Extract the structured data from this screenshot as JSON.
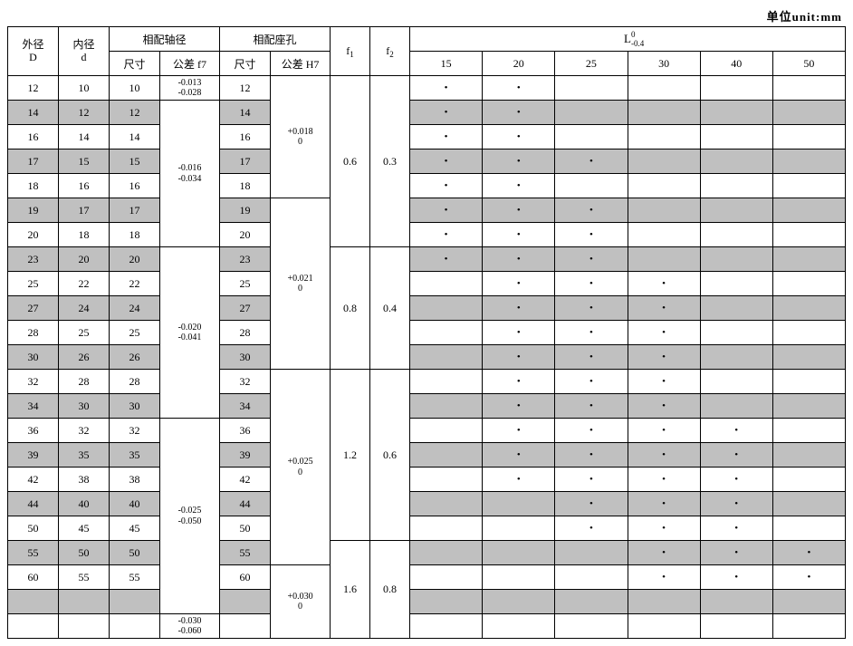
{
  "unit_label": "单位unit:mm",
  "headers": {
    "outer_diameter": "外径",
    "outer_diameter_sym": "D",
    "inner_diameter": "内径",
    "inner_diameter_sym": "d",
    "shaft_fit": "相配轴径",
    "bore_fit": "相配座孔",
    "size": "尺寸",
    "tol_f7": "公差 f7",
    "tol_H7": "公差 H7",
    "f1": "f",
    "f1_sub": "1",
    "f2": "f",
    "f2_sub": "2",
    "L_main": "L",
    "L_top": "0",
    "L_bot": "-0.4",
    "L_cols": [
      "15",
      "20",
      "25",
      "30",
      "40",
      "50"
    ]
  },
  "colors": {
    "gray": "#c0c0c0",
    "white": "#ffffff",
    "border": "#000000"
  },
  "tolerances_f7": [
    {
      "lines": [
        "-0.013",
        "-0.028"
      ],
      "span": 1
    },
    {
      "lines": [
        "-0.016",
        "-0.034"
      ],
      "span": 6
    },
    {
      "lines": [
        "-0.020",
        "-0.041"
      ],
      "span": 7
    },
    {
      "lines": [
        "-0.025",
        "-0.050"
      ],
      "span": 8
    },
    {
      "lines": [
        "-0.030",
        "-0.060"
      ],
      "span": 1
    }
  ],
  "tolerances_H7": [
    {
      "lines": [
        "+0.018",
        "0"
      ],
      "span": 5
    },
    {
      "lines": [
        "+0.021",
        "0"
      ],
      "span": 7
    },
    {
      "lines": [
        "+0.025",
        "0"
      ],
      "span": 8
    },
    {
      "lines": [
        "+0.030",
        "0"
      ],
      "span": 3
    }
  ],
  "f1_groups": [
    {
      "val": "0.6",
      "span": 7
    },
    {
      "val": "0.8",
      "span": 5
    },
    {
      "val": "1.2",
      "span": 7
    },
    {
      "val": "1.6",
      "span": 4
    }
  ],
  "f2_groups": [
    {
      "val": "0.3",
      "span": 7
    },
    {
      "val": "0.4",
      "span": 5
    },
    {
      "val": "0.6",
      "span": 7
    },
    {
      "val": "0.8",
      "span": 4
    }
  ],
  "rows": [
    {
      "D": "12",
      "d": "10",
      "shaft": "10",
      "bore": "12",
      "gray": false,
      "L": [
        1,
        1,
        0,
        0,
        0,
        0
      ]
    },
    {
      "D": "14",
      "d": "12",
      "shaft": "12",
      "bore": "14",
      "gray": true,
      "L": [
        1,
        1,
        0,
        0,
        0,
        0
      ]
    },
    {
      "D": "16",
      "d": "14",
      "shaft": "14",
      "bore": "16",
      "gray": false,
      "L": [
        1,
        1,
        0,
        0,
        0,
        0
      ]
    },
    {
      "D": "17",
      "d": "15",
      "shaft": "15",
      "bore": "17",
      "gray": true,
      "L": [
        1,
        1,
        1,
        0,
        0,
        0
      ]
    },
    {
      "D": "18",
      "d": "16",
      "shaft": "16",
      "bore": "18",
      "gray": false,
      "L": [
        1,
        1,
        0,
        0,
        0,
        0
      ]
    },
    {
      "D": "19",
      "d": "17",
      "shaft": "17",
      "bore": "19",
      "gray": true,
      "L": [
        1,
        1,
        1,
        0,
        0,
        0
      ]
    },
    {
      "D": "20",
      "d": "18",
      "shaft": "18",
      "bore": "20",
      "gray": false,
      "L": [
        1,
        1,
        1,
        0,
        0,
        0
      ]
    },
    {
      "D": "23",
      "d": "20",
      "shaft": "20",
      "bore": "23",
      "gray": true,
      "L": [
        1,
        1,
        1,
        0,
        0,
        0
      ]
    },
    {
      "D": "25",
      "d": "22",
      "shaft": "22",
      "bore": "25",
      "gray": false,
      "L": [
        0,
        1,
        1,
        1,
        0,
        0
      ]
    },
    {
      "D": "27",
      "d": "24",
      "shaft": "24",
      "bore": "27",
      "gray": true,
      "L": [
        0,
        1,
        1,
        1,
        0,
        0
      ]
    },
    {
      "D": "28",
      "d": "25",
      "shaft": "25",
      "bore": "28",
      "gray": false,
      "L": [
        0,
        1,
        1,
        1,
        0,
        0
      ]
    },
    {
      "D": "30",
      "d": "26",
      "shaft": "26",
      "bore": "30",
      "gray": true,
      "L": [
        0,
        1,
        1,
        1,
        0,
        0
      ]
    },
    {
      "D": "32",
      "d": "28",
      "shaft": "28",
      "bore": "32",
      "gray": false,
      "L": [
        0,
        1,
        1,
        1,
        0,
        0
      ]
    },
    {
      "D": "34",
      "d": "30",
      "shaft": "30",
      "bore": "34",
      "gray": true,
      "L": [
        0,
        1,
        1,
        1,
        0,
        0
      ]
    },
    {
      "D": "36",
      "d": "32",
      "shaft": "32",
      "bore": "36",
      "gray": false,
      "L": [
        0,
        1,
        1,
        1,
        1,
        0
      ]
    },
    {
      "D": "39",
      "d": "35",
      "shaft": "35",
      "bore": "39",
      "gray": true,
      "L": [
        0,
        1,
        1,
        1,
        1,
        0
      ]
    },
    {
      "D": "42",
      "d": "38",
      "shaft": "38",
      "bore": "42",
      "gray": false,
      "L": [
        0,
        1,
        1,
        1,
        1,
        0
      ]
    },
    {
      "D": "44",
      "d": "40",
      "shaft": "40",
      "bore": "44",
      "gray": true,
      "L": [
        0,
        0,
        1,
        1,
        1,
        0
      ]
    },
    {
      "D": "50",
      "d": "45",
      "shaft": "45",
      "bore": "50",
      "gray": false,
      "L": [
        0,
        0,
        1,
        1,
        1,
        0
      ]
    },
    {
      "D": "55",
      "d": "50",
      "shaft": "50",
      "bore": "55",
      "gray": true,
      "L": [
        0,
        0,
        0,
        1,
        1,
        1
      ]
    },
    {
      "D": "60",
      "d": "55",
      "shaft": "55",
      "bore": "60",
      "gray": false,
      "L": [
        0,
        0,
        0,
        1,
        1,
        1
      ]
    },
    {
      "D": "",
      "d": "",
      "shaft": "",
      "bore": "",
      "gray": true,
      "L": [
        0,
        0,
        0,
        0,
        0,
        0
      ]
    },
    {
      "D": "",
      "d": "",
      "shaft": "",
      "bore": "",
      "gray": false,
      "L": [
        0,
        0,
        0,
        0,
        0,
        0
      ]
    }
  ],
  "dot": "•"
}
